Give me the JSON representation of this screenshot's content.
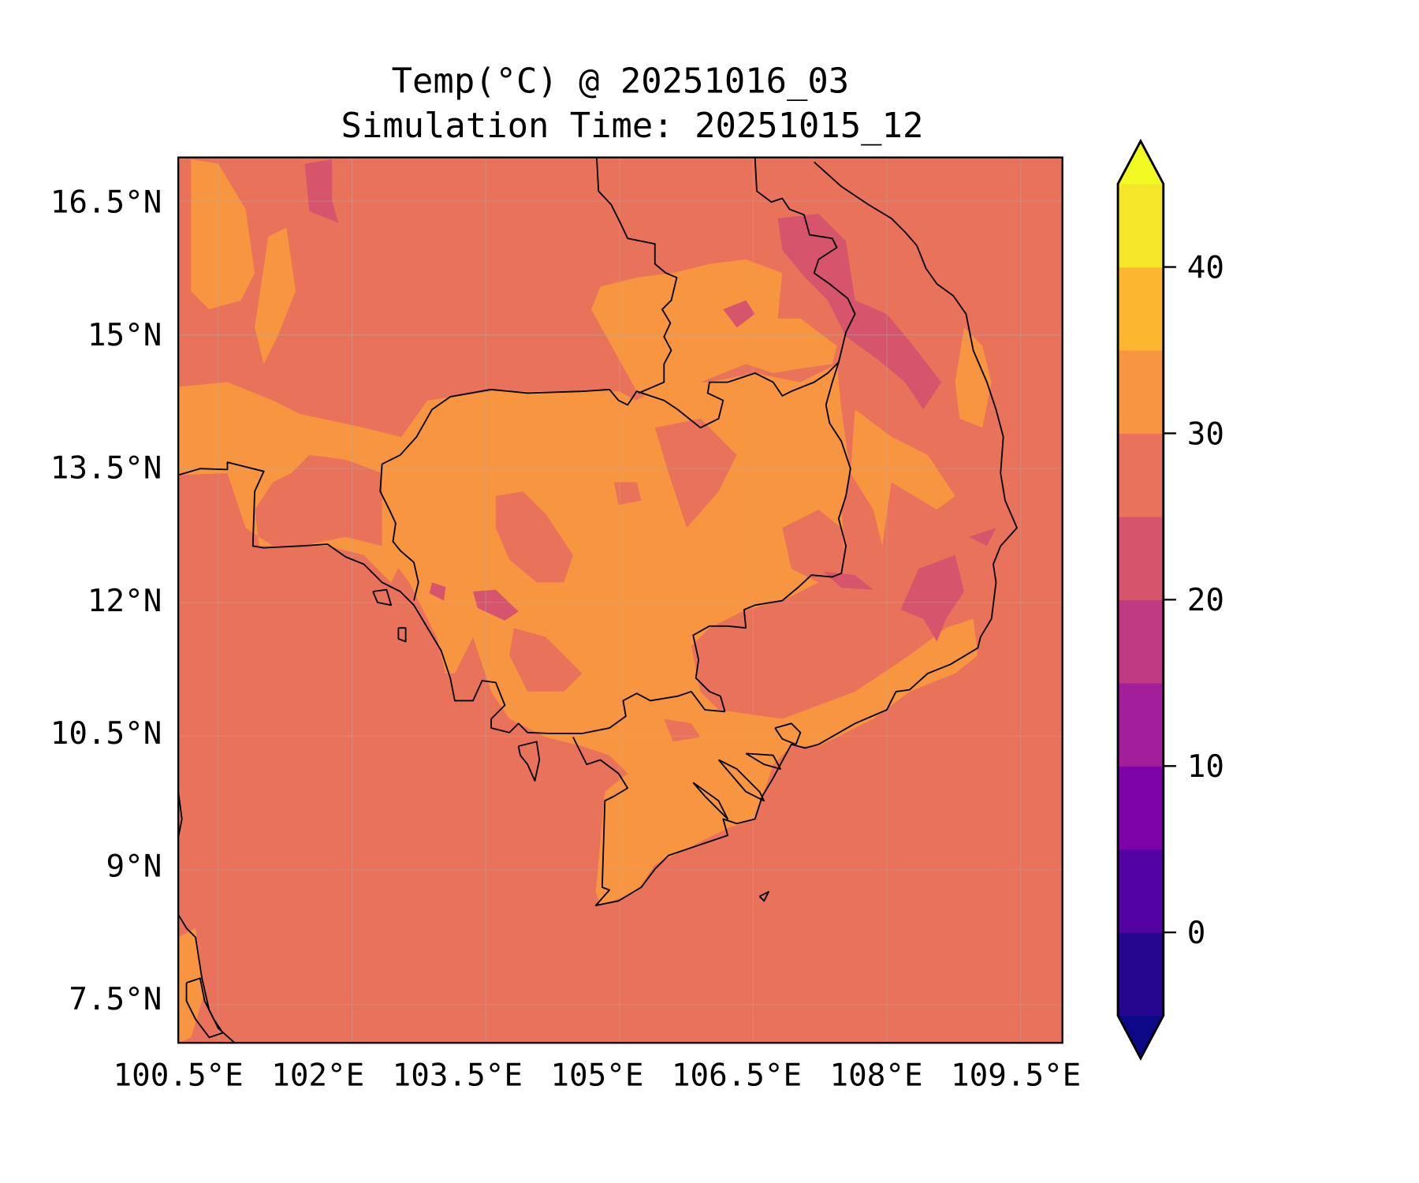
{
  "chart_data": {
    "type": "heatmap",
    "title": "Temp(°C) @ 20251016_03",
    "subtitle": "Simulation Time: 20251015_12",
    "variable": "Temperature (°C)",
    "xlim": [
      100.5,
      110.0
    ],
    "ylim": [
      7.0,
      17.0
    ],
    "x_ticks": [
      100.5,
      102,
      103.5,
      105,
      106.5,
      108,
      109.5
    ],
    "x_tick_labels": [
      "100.5°E",
      "102°E",
      "103.5°E",
      "105°E",
      "106.5°E",
      "108°E",
      "109.5°E"
    ],
    "y_ticks": [
      16.5,
      15,
      13.5,
      12,
      10.5,
      9,
      7.5
    ],
    "y_tick_labels": [
      "16.5°N",
      "15°N",
      "13.5°N",
      "12°N",
      "10.5°N",
      "9°N",
      "7.5°N"
    ],
    "grid": true,
    "colorbar": {
      "placement": "right",
      "levels": [
        -5,
        0,
        5,
        10,
        15,
        20,
        25,
        30,
        35,
        40,
        45
      ],
      "extend": "both",
      "colormap": "plasma",
      "bin_colors": [
        "#26058f",
        "#5302a3",
        "#7e03a8",
        "#a31e9a",
        "#c03a83",
        "#d6556d",
        "#e9735a",
        "#f89540",
        "#fdb62f",
        "#f4e628"
      ],
      "under_color": "#0d0887",
      "over_color": "#f0f921",
      "ticks": [
        0,
        10,
        20,
        30,
        40
      ],
      "tick_labels": [
        "0",
        "10",
        "20",
        "30",
        "40"
      ]
    },
    "field_summary": {
      "dominant_range": [
        25,
        30
      ],
      "land_warm_range": [
        30,
        35
      ],
      "highland_cool_range": [
        20,
        25
      ]
    }
  }
}
